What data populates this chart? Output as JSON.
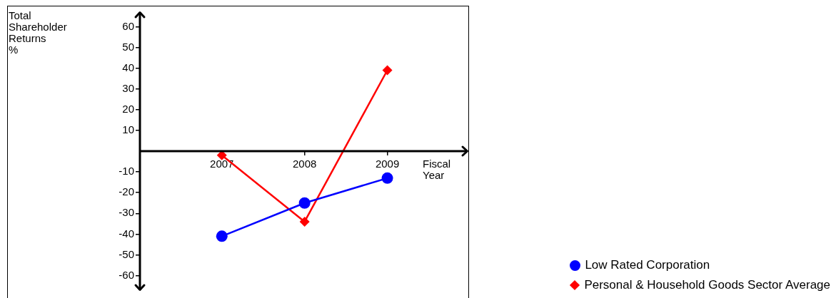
{
  "chart_data": {
    "type": "line",
    "ylabel": "Total Shareholder Returns %",
    "xlabel": "Fiscal Year",
    "categories": [
      "2007",
      "2008",
      "2009"
    ],
    "series": [
      {
        "name": "Low Rated Corporation",
        "color": "#0000ff",
        "marker": "circle",
        "values": [
          -41,
          -25,
          -13
        ]
      },
      {
        "name": "Personal & Household Goods Sector Average",
        "color": "#ff0000",
        "marker": "diamond",
        "values": [
          -2,
          -34,
          39
        ]
      }
    ],
    "ylim": [
      -67,
      67
    ],
    "yticks": [
      60,
      50,
      40,
      30,
      20,
      10,
      -10,
      -20,
      -30,
      -40,
      -50,
      -60
    ],
    "grid": false,
    "legend": "bottom right",
    "line_style": "solid"
  }
}
